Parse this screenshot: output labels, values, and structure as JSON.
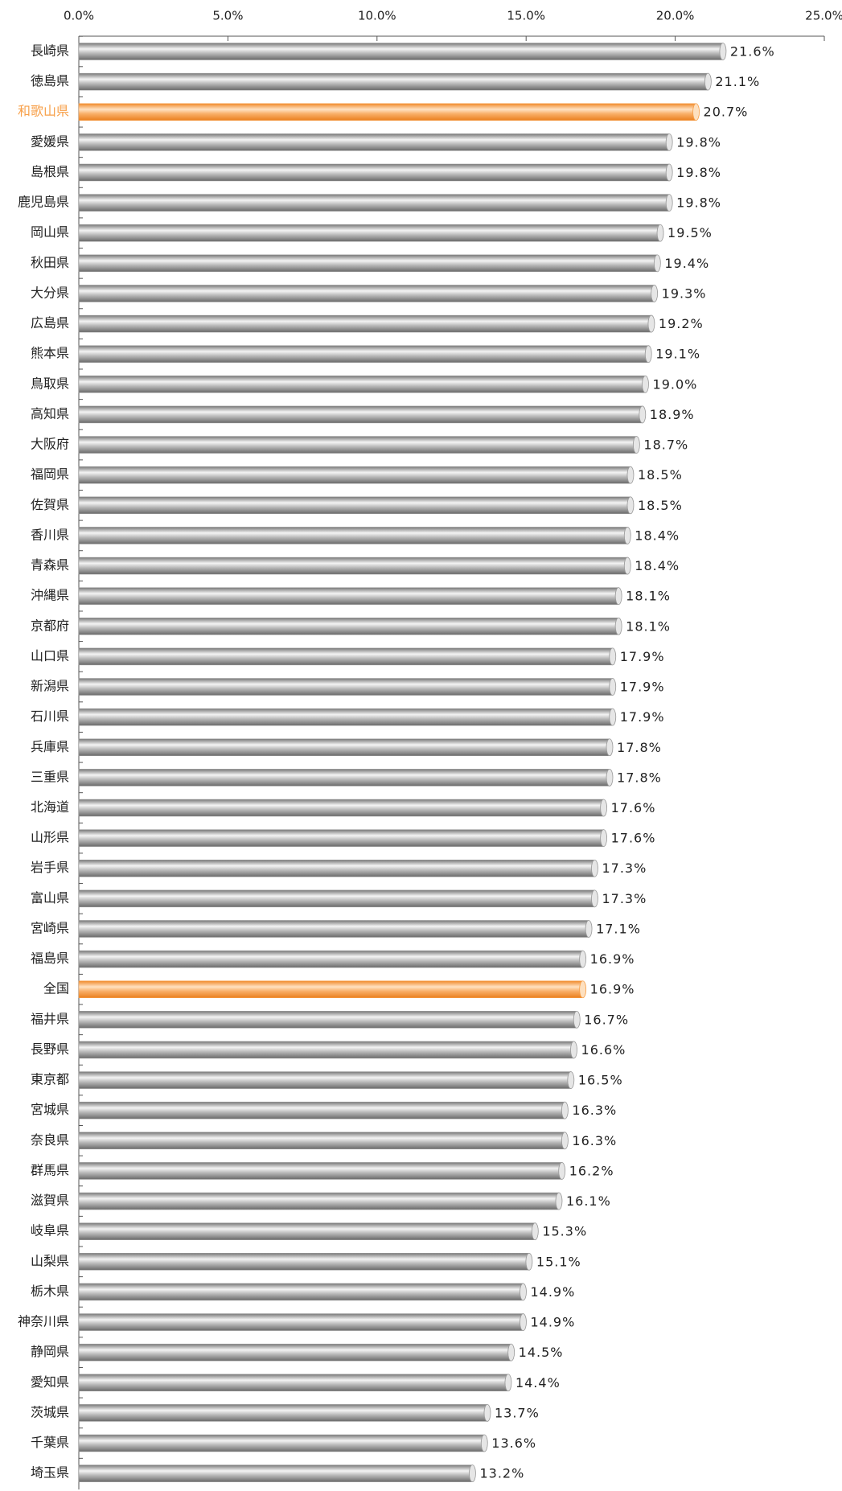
{
  "chart_data": {
    "type": "barh",
    "categories": [
      "長崎県",
      "徳島県",
      "和歌山県",
      "愛媛県",
      "島根県",
      "鹿児島県",
      "岡山県",
      "秋田県",
      "大分県",
      "広島県",
      "熊本県",
      "鳥取県",
      "高知県",
      "大阪府",
      "福岡県",
      "佐賀県",
      "香川県",
      "青森県",
      "沖縄県",
      "京都府",
      "山口県",
      "新潟県",
      "石川県",
      "兵庫県",
      "三重県",
      "北海道",
      "山形県",
      "岩手県",
      "富山県",
      "宮崎県",
      "福島県",
      "全国",
      "福井県",
      "長野県",
      "東京都",
      "宮城県",
      "奈良県",
      "群馬県",
      "滋賀県",
      "岐阜県",
      "山梨県",
      "栃木県",
      "神奈川県",
      "静岡県",
      "愛知県",
      "茨城県",
      "千葉県",
      "埼玉県"
    ],
    "values": [
      21.6,
      21.1,
      20.7,
      19.8,
      19.8,
      19.8,
      19.5,
      19.4,
      19.3,
      19.2,
      19.1,
      19.0,
      18.9,
      18.7,
      18.5,
      18.5,
      18.4,
      18.4,
      18.1,
      18.1,
      17.9,
      17.9,
      17.9,
      17.8,
      17.8,
      17.6,
      17.6,
      17.3,
      17.3,
      17.1,
      16.9,
      16.9,
      16.7,
      16.6,
      16.5,
      16.3,
      16.3,
      16.2,
      16.1,
      15.3,
      15.1,
      14.9,
      14.9,
      14.5,
      14.4,
      13.7,
      13.6,
      13.2
    ],
    "value_labels": [
      "21.6%",
      "21.1%",
      "20.7%",
      "19.8%",
      "19.8%",
      "19.8%",
      "19.5%",
      "19.4%",
      "19.3%",
      "19.2%",
      "19.1%",
      "19.0%",
      "18.9%",
      "18.7%",
      "18.5%",
      "18.5%",
      "18.4%",
      "18.4%",
      "18.1%",
      "18.1%",
      "17.9%",
      "17.9%",
      "17.9%",
      "17.8%",
      "17.8%",
      "17.6%",
      "17.6%",
      "17.3%",
      "17.3%",
      "17.1%",
      "16.9%",
      "16.9%",
      "16.7%",
      "16.6%",
      "16.5%",
      "16.3%",
      "16.3%",
      "16.2%",
      "16.1%",
      "15.3%",
      "15.1%",
      "14.9%",
      "14.9%",
      "14.5%",
      "14.4%",
      "13.7%",
      "13.6%",
      "13.2%"
    ],
    "color": "#9a9a9a",
    "highlight_color": "#f7a04a",
    "highlight": [
      "和歌山県",
      "全国"
    ],
    "highlight_label": [
      "和歌山県"
    ],
    "xlim": [
      0,
      25
    ],
    "xticks": [
      {
        "value": 0,
        "label": "0.0%"
      },
      {
        "value": 5,
        "label": "5.0%"
      },
      {
        "value": 10,
        "label": "10.0%"
      },
      {
        "value": 15,
        "label": "15.0%"
      },
      {
        "value": 20,
        "label": "20.0%"
      },
      {
        "value": 25,
        "label": "25.0%"
      }
    ]
  }
}
